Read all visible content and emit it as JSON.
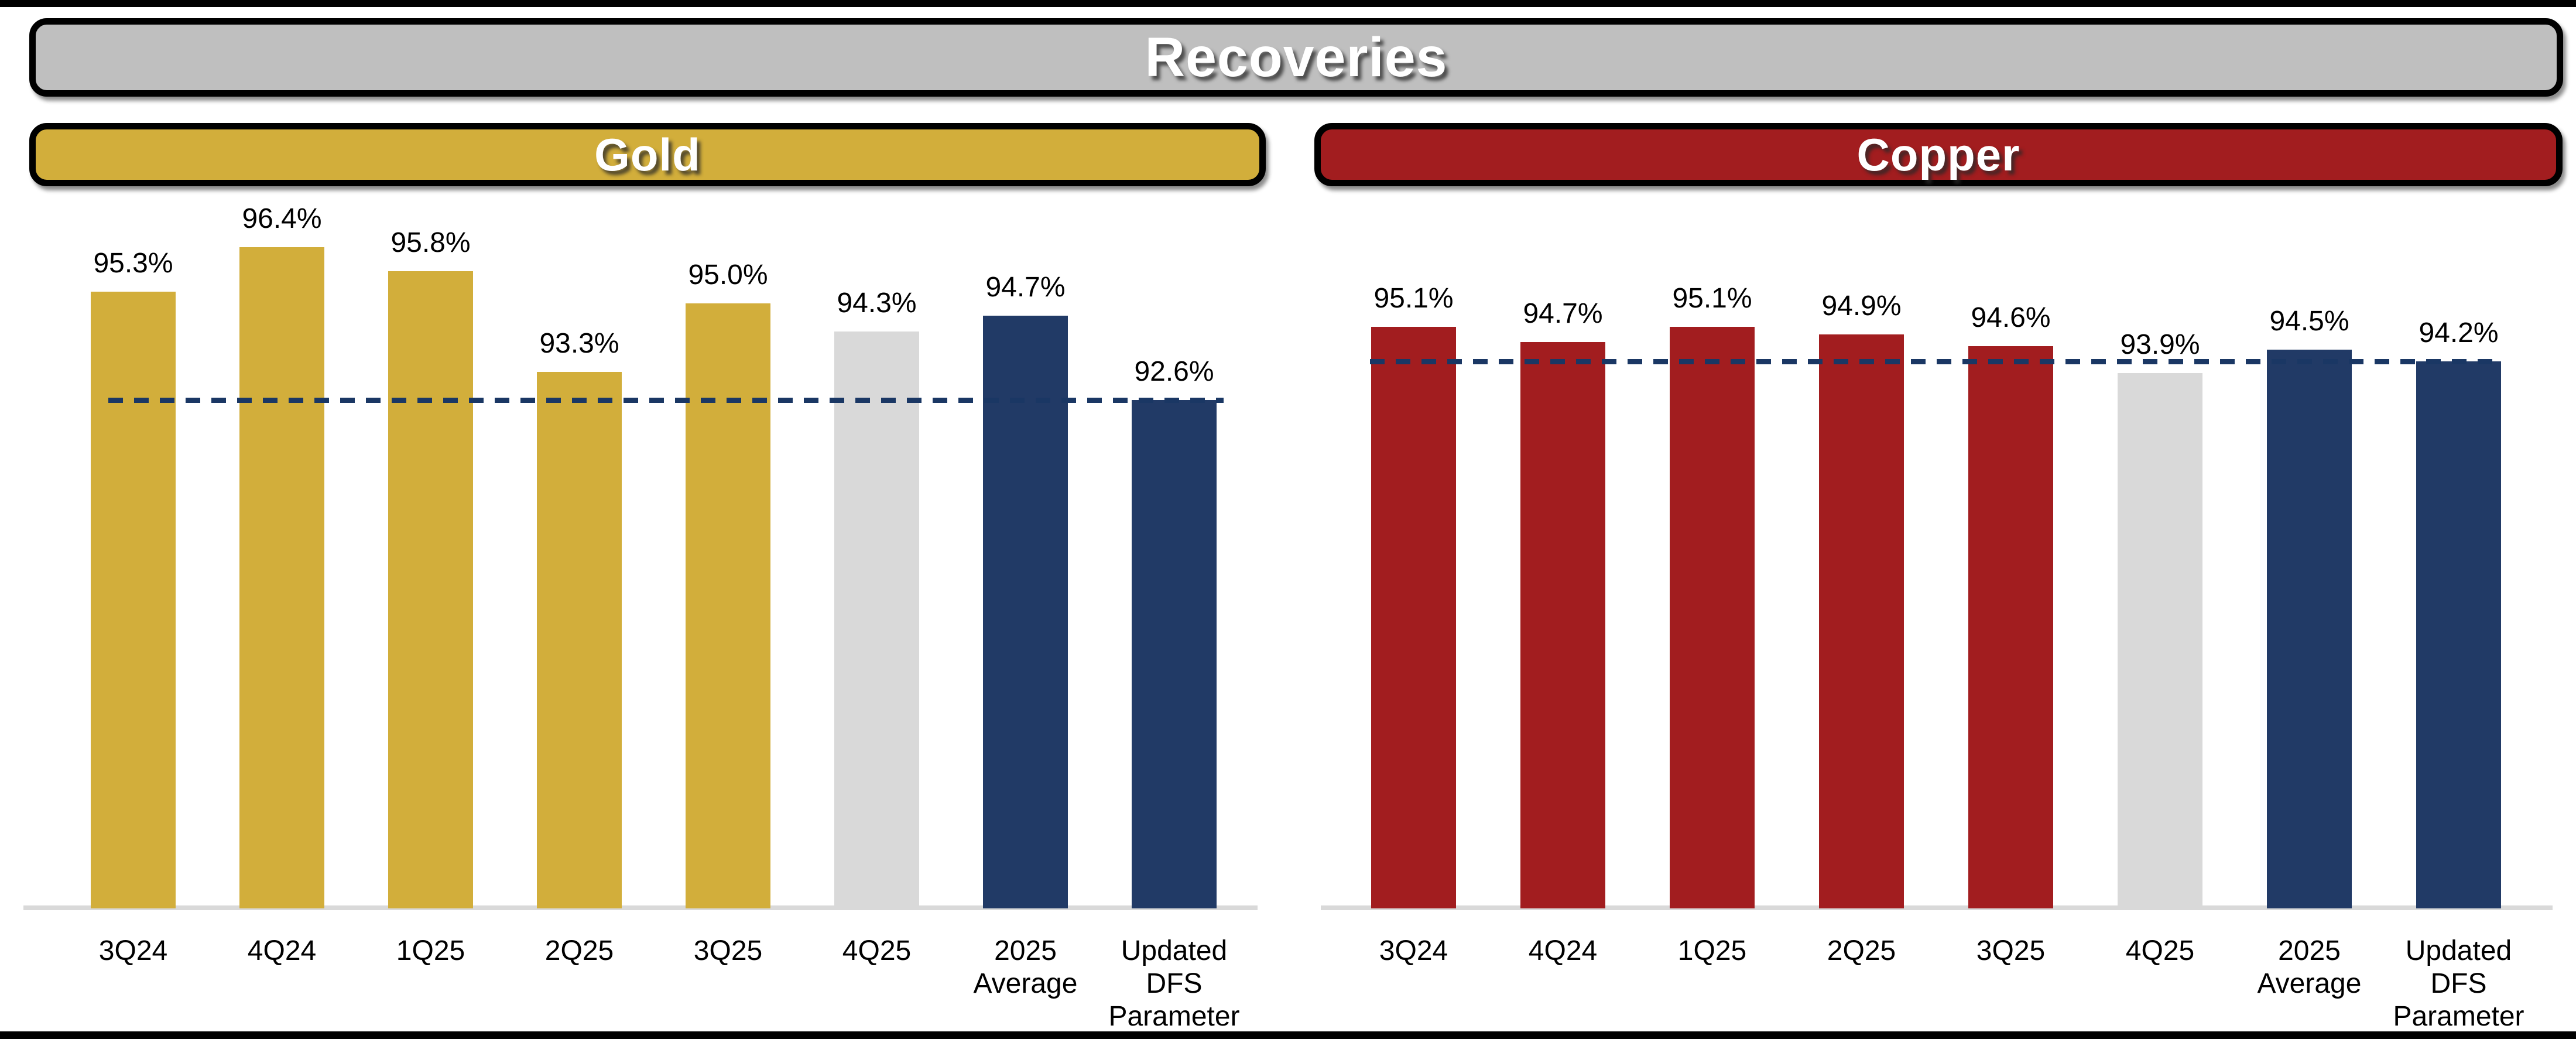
{
  "header": {
    "title": "Recoveries"
  },
  "panels": [
    {
      "label": "Gold",
      "header_color": "#D2AE3B"
    },
    {
      "label": "Copper",
      "header_color": "#A21D1F"
    }
  ],
  "colors": {
    "title_bar_gray": "#BFBFBF",
    "gold": "#D2AE3B",
    "copper_red": "#A21D1F",
    "navy": "#213A66",
    "neutral_gray_bar": "#D9D9D9",
    "dash_line_navy": "#1A3764",
    "axis_line_gray": "#D9D9D9",
    "border_black": "#000000"
  },
  "chart_data": [
    {
      "type": "bar",
      "title": "Gold",
      "categories": [
        "3Q24",
        "4Q24",
        "1Q25",
        "2Q25",
        "3Q25",
        "4Q25",
        "2025 Average",
        "Updated DFS Parameter"
      ],
      "category_lines": [
        [
          "3Q24"
        ],
        [
          "4Q24"
        ],
        [
          "1Q25"
        ],
        [
          "2Q25"
        ],
        [
          "3Q25"
        ],
        [
          "4Q25"
        ],
        [
          "2025",
          "Average"
        ],
        [
          "Updated",
          "DFS",
          "Parameter"
        ]
      ],
      "values": [
        95.3,
        96.4,
        95.8,
        93.3,
        95.0,
        94.3,
        94.7,
        92.6
      ],
      "data_labels": [
        "95.3%",
        "96.4%",
        "95.8%",
        "93.3%",
        "95.0%",
        "94.3%",
        "94.7%",
        "92.6%"
      ],
      "bar_roles": [
        "primary",
        "primary",
        "primary",
        "primary",
        "primary",
        "neutral",
        "highlight",
        "highlight"
      ],
      "primary_color": "#D2AE3B",
      "reference_line": {
        "value": 92.6,
        "style": "dashed",
        "color": "#1A3764",
        "meaning": "Updated DFS Parameter"
      },
      "unit": "%",
      "ylim": [
        80,
        97
      ],
      "grid": false,
      "legend": false
    },
    {
      "type": "bar",
      "title": "Copper",
      "categories": [
        "3Q24",
        "4Q24",
        "1Q25",
        "2Q25",
        "3Q25",
        "4Q25",
        "2025 Average",
        "Updated DFS Parameter"
      ],
      "category_lines": [
        [
          "3Q24"
        ],
        [
          "4Q24"
        ],
        [
          "1Q25"
        ],
        [
          "2Q25"
        ],
        [
          "3Q25"
        ],
        [
          "4Q25"
        ],
        [
          "2025",
          "Average"
        ],
        [
          "Updated",
          "DFS",
          "Parameter"
        ]
      ],
      "values": [
        95.1,
        94.7,
        95.1,
        94.9,
        94.6,
        93.9,
        94.5,
        94.2
      ],
      "data_labels": [
        "95.1%",
        "94.7%",
        "95.1%",
        "94.9%",
        "94.6%",
        "93.9%",
        "94.5%",
        "94.2%"
      ],
      "bar_roles": [
        "primary",
        "primary",
        "primary",
        "primary",
        "primary",
        "neutral",
        "highlight",
        "highlight"
      ],
      "primary_color": "#A21D1F",
      "reference_line": {
        "value": 94.2,
        "style": "dashed",
        "color": "#1A3764",
        "meaning": "Updated DFS Parameter"
      },
      "unit": "%",
      "ylim": [
        80,
        96.5
      ],
      "grid": false,
      "legend": false
    }
  ]
}
